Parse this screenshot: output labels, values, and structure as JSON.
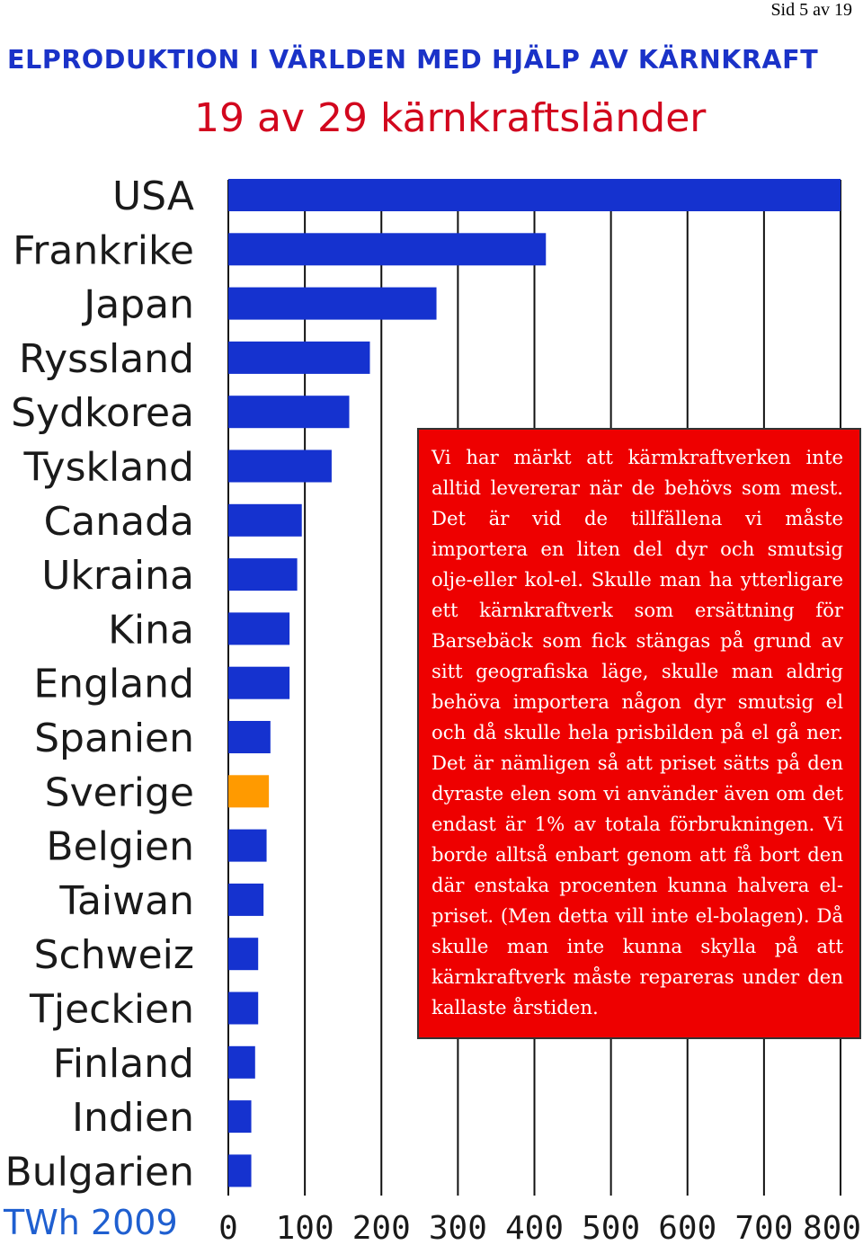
{
  "page_number": "Sid 5 av 19",
  "main_title": "ELPRODUKTION I VÄRLDEN MED HJÄLP AV KÄRNKRAFT",
  "subtitle": "19 av 29 kärnkraftsländer",
  "unit_label": "TWh 2009",
  "colors": {
    "bar": "#1532cf",
    "highlight_bar": "#ff9a00",
    "note_background": "#ee0000",
    "title": "#1a32c8",
    "subtitle": "#d2071e",
    "unit_label": "#1f5fd0"
  },
  "note_text": "Vi har märkt att kärmkraftverken inte alltid levererar när de behövs som mest. Det är vid de tillfällena vi måste importera en liten del dyr och smutsig olje-eller kol-el. Skulle man ha ytterligare ett kärnkraftverk som ersättning för Barsebäck som fick stängas på grund av sitt geografiska läge, skulle man aldrig behöva importera någon dyr smutsig el och då skulle hela prisbilden på el gå ner. Det är nämligen så att priset sätts på den dyraste elen som vi använder även om det endast är 1% av totala förbrukningen. Vi borde alltså enbart genom att få bort den där enstaka procenten kunna halvera el-priset. (Men detta vill inte el-bolagen). Då skulle man inte kunna skylla på att kärnkraftverk måste repareras under den kallaste årstiden.",
  "chart_data": {
    "type": "bar",
    "orientation": "horizontal",
    "title": "19 av 29 kärnkraftsländer",
    "xlabel": "TWh 2009",
    "ylabel": "",
    "xlim": [
      0,
      800
    ],
    "xticks": [
      0,
      100,
      200,
      300,
      400,
      500,
      600,
      700,
      800
    ],
    "grid": "vertical",
    "categories": [
      "USA",
      "Frankrike",
      "Japan",
      "Ryssland",
      "Sydkorea",
      "Tyskland",
      "Canada",
      "Ukraina",
      "Kina",
      "England",
      "Spanien",
      "Sverige",
      "Belgien",
      "Taiwan",
      "Schweiz",
      "Tjeckien",
      "Finland",
      "Indien",
      "Bulgarien"
    ],
    "values": [
      800,
      415,
      272,
      185,
      158,
      135,
      96,
      90,
      80,
      80,
      55,
      53,
      50,
      46,
      39,
      39,
      35,
      30,
      30
    ],
    "highlight": "Sverige"
  }
}
